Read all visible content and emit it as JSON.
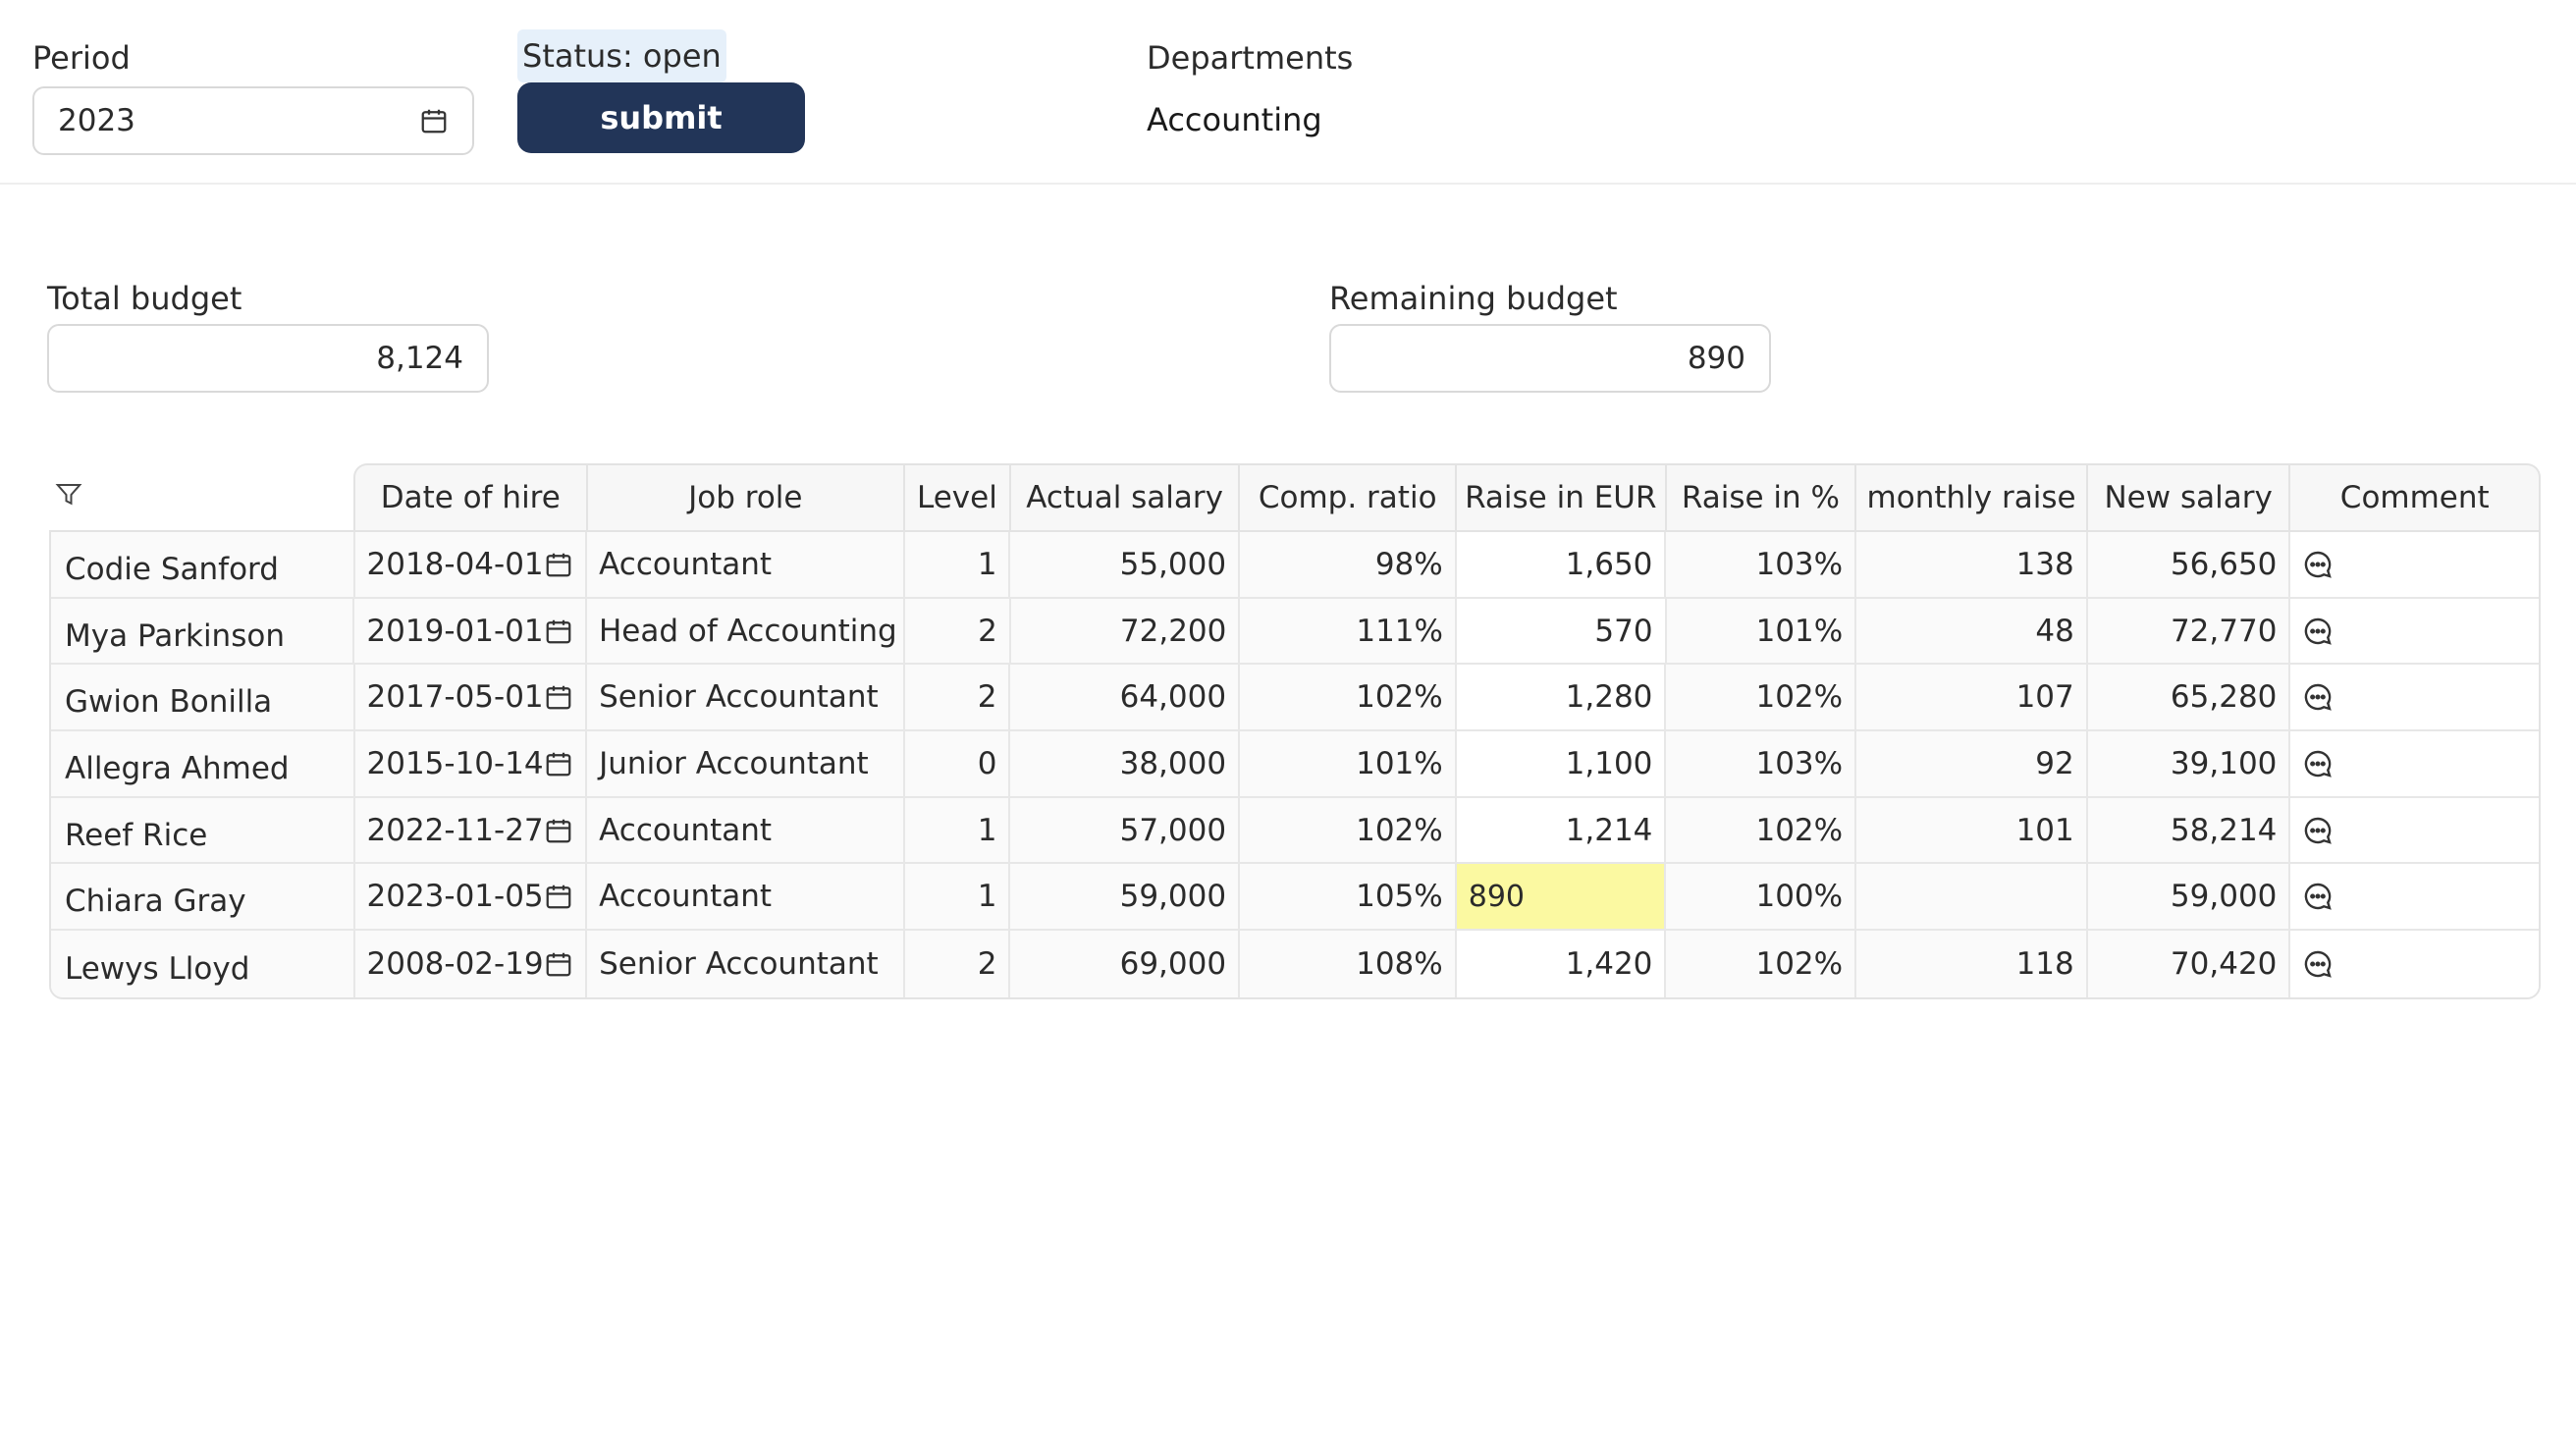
{
  "header": {
    "period_label": "Period",
    "period_value": "2023",
    "status": "Status: open",
    "submit_label": "submit",
    "departments_label": "Departments",
    "department_value": "Accounting"
  },
  "budget": {
    "total_label": "Total budget",
    "total_value": "8,124",
    "remaining_label": "Remaining budget",
    "remaining_value": "890"
  },
  "table": {
    "columns": [
      "Date of hire",
      "Job role",
      "Level",
      "Actual salary",
      "Comp. ratio",
      "Raise in EUR",
      "Raise in %",
      "monthly raise",
      "New salary",
      "Comment"
    ],
    "rows": [
      {
        "name": "Codie Sanford",
        "hire": "2018-04-01",
        "role": "Accountant",
        "level": "1",
        "salary": "55,000",
        "ratio": "98%",
        "raise_eur": "1,650",
        "raise_pct": "103%",
        "monthly": "138",
        "new_salary": "56,650"
      },
      {
        "name": "Mya Parkinson",
        "hire": "2019-01-01",
        "role": "Head of Accounting",
        "level": "2",
        "salary": "72,200",
        "ratio": "111%",
        "raise_eur": "570",
        "raise_pct": "101%",
        "monthly": "48",
        "new_salary": "72,770"
      },
      {
        "name": "Gwion Bonilla",
        "hire": "2017-05-01",
        "role": "Senior Accountant",
        "level": "2",
        "salary": "64,000",
        "ratio": "102%",
        "raise_eur": "1,280",
        "raise_pct": "102%",
        "monthly": "107",
        "new_salary": "65,280"
      },
      {
        "name": "Allegra Ahmed",
        "hire": "2015-10-14",
        "role": "Junior Accountant",
        "level": "0",
        "salary": "38,000",
        "ratio": "101%",
        "raise_eur": "1,100",
        "raise_pct": "103%",
        "monthly": "92",
        "new_salary": "39,100"
      },
      {
        "name": "Reef Rice",
        "hire": "2022-11-27",
        "role": "Accountant",
        "level": "1",
        "salary": "57,000",
        "ratio": "102%",
        "raise_eur": "1,214",
        "raise_pct": "102%",
        "monthly": "101",
        "new_salary": "58,214"
      },
      {
        "name": "Chiara Gray",
        "hire": "2023-01-05",
        "role": "Accountant",
        "level": "1",
        "salary": "59,000",
        "ratio": "105%",
        "raise_eur": "890",
        "raise_pct": "100%",
        "monthly": "",
        "new_salary": "59,000",
        "editing": true
      },
      {
        "name": "Lewys Lloyd",
        "hire": "2008-02-19",
        "role": "Senior Accountant",
        "level": "2",
        "salary": "69,000",
        "ratio": "108%",
        "raise_eur": "1,420",
        "raise_pct": "102%",
        "monthly": "118",
        "new_salary": "70,420"
      }
    ]
  },
  "icons": {
    "calendar": "calendar-icon",
    "comment": "comment-icon",
    "filter": "filter-icon"
  },
  "colors": {
    "submit_bg": "#223558",
    "status_bg": "#e6f0fa",
    "edit_highlight": "#fbf9a1"
  }
}
